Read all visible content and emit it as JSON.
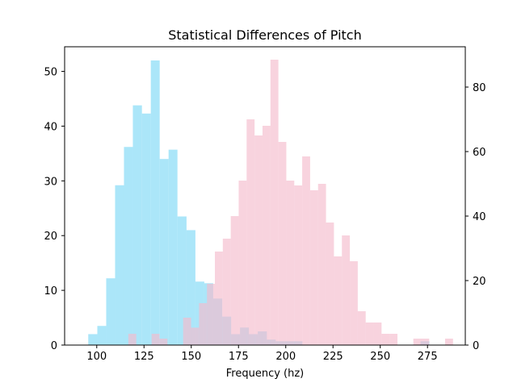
{
  "chart_data": {
    "type": "bar",
    "title": "Statistical Differences of Pitch",
    "xlabel": "Frequency (hz)",
    "ylabel": "",
    "ylabel_right": "",
    "xlim": [
      83,
      295
    ],
    "ylim_left": [
      0,
      54.5
    ],
    "ylim_right": [
      0,
      92.5
    ],
    "grid": false,
    "x_ticks": [
      100,
      125,
      150,
      175,
      200,
      225,
      250,
      275
    ],
    "y_ticks_left": [
      0,
      10,
      20,
      30,
      40,
      50
    ],
    "y_ticks_right": [
      0,
      20,
      40,
      60,
      80
    ],
    "colors": {
      "blue": "#87dcf7",
      "pink": "#f5bccc",
      "blue_alpha": 0.7,
      "pink_alpha": 0.65
    },
    "series": [
      {
        "axis": "left",
        "color": "#87dcf7",
        "bins": [
          {
            "x0": 95.5,
            "x1": 100.3,
            "count": 2
          },
          {
            "x0": 100.3,
            "x1": 105.0,
            "count": 3.5
          },
          {
            "x0": 105.0,
            "x1": 109.7,
            "count": 12.2
          },
          {
            "x0": 109.7,
            "x1": 114.4,
            "count": 29.2
          },
          {
            "x0": 114.4,
            "x1": 119.1,
            "count": 36.2
          },
          {
            "x0": 119.1,
            "x1": 123.9,
            "count": 43.8
          },
          {
            "x0": 123.9,
            "x1": 128.6,
            "count": 42.3
          },
          {
            "x0": 128.6,
            "x1": 133.3,
            "count": 52.0
          },
          {
            "x0": 133.3,
            "x1": 138.0,
            "count": 34.0
          },
          {
            "x0": 138.0,
            "x1": 142.7,
            "count": 35.7
          },
          {
            "x0": 142.7,
            "x1": 147.5,
            "count": 23.5
          },
          {
            "x0": 147.5,
            "x1": 152.2,
            "count": 21.0
          },
          {
            "x0": 152.2,
            "x1": 156.9,
            "count": 11.6
          },
          {
            "x0": 156.9,
            "x1": 161.6,
            "count": 11.3
          },
          {
            "x0": 161.6,
            "x1": 166.4,
            "count": 8.5
          },
          {
            "x0": 166.4,
            "x1": 171.1,
            "count": 5.2
          },
          {
            "x0": 171.1,
            "x1": 175.8,
            "count": 2.0
          },
          {
            "x0": 175.8,
            "x1": 180.5,
            "count": 3.2
          },
          {
            "x0": 180.5,
            "x1": 185.2,
            "count": 2.0
          },
          {
            "x0": 185.2,
            "x1": 190.0,
            "count": 2.5
          },
          {
            "x0": 190.0,
            "x1": 194.7,
            "count": 1.0
          },
          {
            "x0": 194.7,
            "x1": 199.4,
            "count": 0.7
          },
          {
            "x0": 199.4,
            "x1": 204.1,
            "count": 0.7
          },
          {
            "x0": 204.1,
            "x1": 208.8,
            "count": 0.7
          },
          {
            "x0": 271.3,
            "x1": 276.0,
            "count": 0.7
          }
        ]
      },
      {
        "axis": "right",
        "color": "#f5bccc",
        "bins": [
          {
            "x0": 116.7,
            "x1": 120.9,
            "count": 3.5
          },
          {
            "x0": 129.0,
            "x1": 133.2,
            "count": 3.5
          },
          {
            "x0": 133.2,
            "x1": 137.4,
            "count": 2.0
          },
          {
            "x0": 145.7,
            "x1": 149.9,
            "count": 8.5
          },
          {
            "x0": 149.9,
            "x1": 154.1,
            "count": 5.4
          },
          {
            "x0": 154.1,
            "x1": 158.3,
            "count": 13.0
          },
          {
            "x0": 158.3,
            "x1": 162.5,
            "count": 19.0
          },
          {
            "x0": 162.5,
            "x1": 166.7,
            "count": 29.0
          },
          {
            "x0": 166.7,
            "x1": 170.9,
            "count": 33.0
          },
          {
            "x0": 170.9,
            "x1": 175.1,
            "count": 40.0
          },
          {
            "x0": 175.1,
            "x1": 179.3,
            "count": 51.0
          },
          {
            "x0": 179.3,
            "x1": 183.5,
            "count": 70.0
          },
          {
            "x0": 183.5,
            "x1": 187.7,
            "count": 65.0
          },
          {
            "x0": 187.7,
            "x1": 191.9,
            "count": 68.0
          },
          {
            "x0": 191.9,
            "x1": 196.1,
            "count": 88.5
          },
          {
            "x0": 196.1,
            "x1": 200.3,
            "count": 63.0
          },
          {
            "x0": 200.3,
            "x1": 204.5,
            "count": 51.0
          },
          {
            "x0": 204.5,
            "x1": 208.7,
            "count": 49.5
          },
          {
            "x0": 208.7,
            "x1": 212.9,
            "count": 58.5
          },
          {
            "x0": 212.9,
            "x1": 217.1,
            "count": 48.0
          },
          {
            "x0": 217.1,
            "x1": 221.3,
            "count": 50.0
          },
          {
            "x0": 221.3,
            "x1": 225.5,
            "count": 38.0
          },
          {
            "x0": 225.5,
            "x1": 229.7,
            "count": 27.5
          },
          {
            "x0": 229.7,
            "x1": 233.9,
            "count": 34.0
          },
          {
            "x0": 233.9,
            "x1": 238.1,
            "count": 26.0
          },
          {
            "x0": 238.1,
            "x1": 242.3,
            "count": 10.5
          },
          {
            "x0": 242.3,
            "x1": 246.5,
            "count": 7.0
          },
          {
            "x0": 246.5,
            "x1": 250.7,
            "count": 7.0
          },
          {
            "x0": 250.7,
            "x1": 254.9,
            "count": 3.5
          },
          {
            "x0": 254.9,
            "x1": 259.1,
            "count": 3.5
          },
          {
            "x0": 267.5,
            "x1": 271.7,
            "count": 2.0
          },
          {
            "x0": 271.7,
            "x1": 275.9,
            "count": 2.0
          },
          {
            "x0": 284.3,
            "x1": 288.5,
            "count": 2.0
          }
        ]
      }
    ]
  }
}
